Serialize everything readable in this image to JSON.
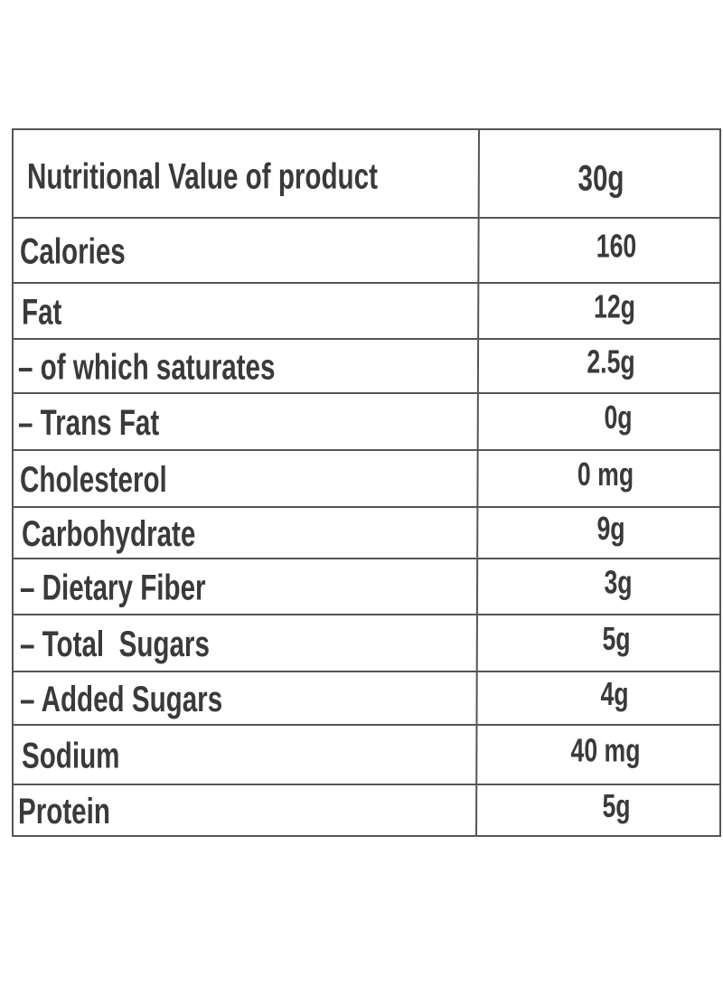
{
  "header": {
    "label": "Nutritional Value of product",
    "amount": "30g"
  },
  "table": {
    "rows": [
      [
        "Calories",
        "160"
      ],
      [
        "Fat",
        "12g"
      ],
      [
        "– of which saturates",
        "2.5g"
      ],
      [
        "– Trans Fat",
        "0g"
      ],
      [
        "Cholesterol",
        "0 mg"
      ],
      [
        "Carbohydrate",
        "9g"
      ],
      [
        "– Dietary Fiber",
        "3g"
      ],
      [
        "– Total  Sugars",
        "5g"
      ],
      [
        "– Added Sugars",
        "4g"
      ],
      [
        "Sodium",
        "40 mg"
      ],
      [
        "Protein",
        "5g"
      ]
    ]
  }
}
